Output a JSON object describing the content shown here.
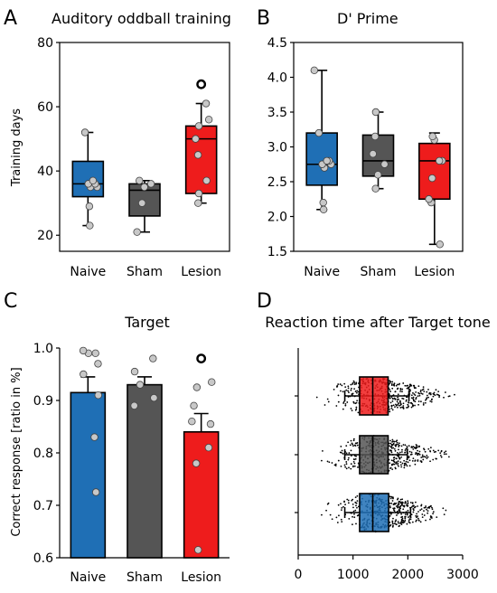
{
  "colors": {
    "naive": "#1f6fb5",
    "sham": "#555555",
    "lesion": "#ee1c1c",
    "dot": "#c8c8c8",
    "axis": "#000000"
  },
  "chart_data": [
    {
      "panel": "A",
      "type": "box",
      "title": "Auditory oddball training",
      "xlabel": "",
      "ylabel": "Training days",
      "ylim": [
        15,
        80
      ],
      "yticks": [
        20,
        40,
        60,
        80
      ],
      "categories": [
        "Naive",
        "Sham",
        "Lesion"
      ],
      "boxes": [
        {
          "name": "Naive",
          "min": 23,
          "q1": 32,
          "median": 36,
          "q3": 43,
          "max": 52,
          "points": [
            23,
            29,
            35,
            35,
            36,
            36,
            37,
            52
          ]
        },
        {
          "name": "Sham",
          "min": 21,
          "q1": 26,
          "median": 34,
          "q3": 36,
          "max": 37,
          "points": [
            21,
            30,
            35,
            36,
            37
          ]
        },
        {
          "name": "Lesion",
          "min": 30,
          "q1": 33,
          "median": 50,
          "q3": 54,
          "max": 61,
          "points": [
            30,
            33,
            37,
            45,
            50,
            54,
            56,
            61
          ],
          "outliers": [
            67
          ]
        }
      ]
    },
    {
      "panel": "B",
      "type": "box",
      "title": "D' Prime",
      "xlabel": "",
      "ylabel": "",
      "ylim": [
        1.5,
        4.5
      ],
      "yticks": [
        "1.5",
        "2.0",
        "2.5",
        "3.0",
        "3.5",
        "4.0",
        "4.5"
      ],
      "categories": [
        "Naive",
        "Sham",
        "Lesion"
      ],
      "boxes": [
        {
          "name": "Naive",
          "min": 2.1,
          "q1": 2.45,
          "median": 2.75,
          "q3": 3.2,
          "max": 4.1,
          "points": [
            2.1,
            2.2,
            2.7,
            2.75,
            2.75,
            2.8,
            2.8,
            3.2,
            4.1
          ]
        },
        {
          "name": "Sham",
          "min": 2.4,
          "q1": 2.58,
          "median": 2.8,
          "q3": 3.17,
          "max": 3.5,
          "points": [
            2.4,
            2.6,
            2.75,
            2.9,
            3.15,
            3.5
          ]
        },
        {
          "name": "Lesion",
          "min": 1.6,
          "q1": 2.25,
          "median": 2.8,
          "q3": 3.05,
          "max": 3.2,
          "points": [
            1.6,
            2.2,
            2.25,
            2.55,
            2.8,
            2.8,
            3.1,
            3.15
          ]
        }
      ]
    },
    {
      "panel": "C",
      "type": "bar",
      "title": "Target",
      "xlabel": "",
      "ylabel": "Correct response [ratio in %]",
      "ylim": [
        0.6,
        1.0
      ],
      "yticks": [
        "0.6",
        "0.7",
        "0.8",
        "0.9",
        "1.0"
      ],
      "categories": [
        "Naive",
        "Sham",
        "Lesion"
      ],
      "values": [
        0.915,
        0.93,
        0.84
      ],
      "errors": [
        0.03,
        0.015,
        0.035
      ],
      "points": [
        [
          0.725,
          0.83,
          0.91,
          0.95,
          0.97,
          0.99,
          0.99,
          0.995
        ],
        [
          0.89,
          0.905,
          0.93,
          0.955,
          0.98
        ],
        [
          0.615,
          0.78,
          0.81,
          0.855,
          0.86,
          0.89,
          0.925,
          0.935
        ]
      ],
      "outliers": [
        [],
        [],
        [
          0.98
        ]
      ]
    },
    {
      "panel": "D",
      "type": "box-horizontal",
      "title": "Reaction time after Target tone",
      "xlabel": "",
      "ylabel": "",
      "xlim": [
        0,
        3000
      ],
      "xticks": [
        0,
        1000,
        2000,
        3000
      ],
      "rows": [
        {
          "color": "lesion",
          "whisker_low": 850,
          "q1": 1120,
          "median": 1360,
          "q3": 1640,
          "whisker_high": 2020,
          "spread_low": 250,
          "spread_high": 2950
        },
        {
          "color": "sham",
          "whisker_low": 850,
          "q1": 1120,
          "median": 1360,
          "q3": 1640,
          "whisker_high": 1990,
          "spread_low": 300,
          "spread_high": 2950
        },
        {
          "color": "naive",
          "whisker_low": 850,
          "q1": 1120,
          "median": 1360,
          "q3": 1650,
          "whisker_high": 2050,
          "spread_low": 300,
          "spread_high": 2950
        }
      ]
    }
  ]
}
